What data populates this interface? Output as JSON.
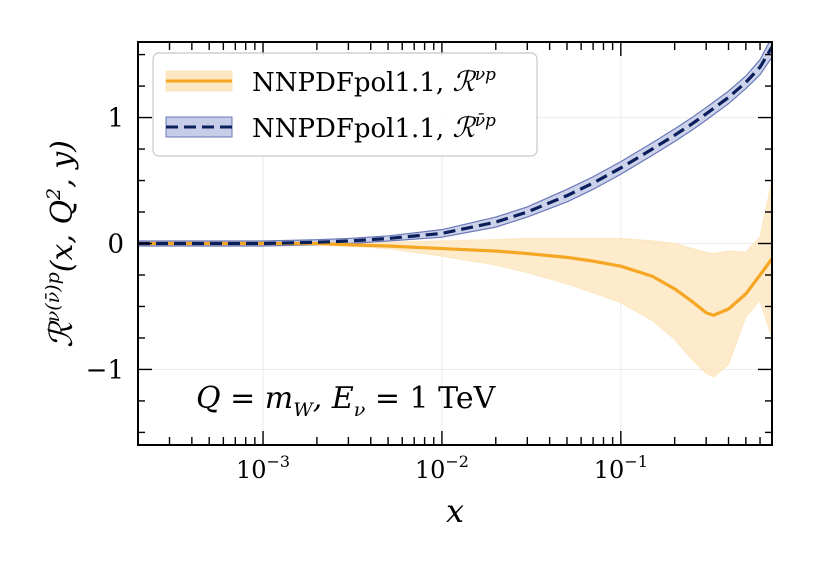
{
  "chart_data": {
    "type": "line",
    "xscale": "log",
    "xlim": [
      0.0002,
      0.7
    ],
    "ylim": [
      -1.6,
      1.6
    ],
    "grid": true,
    "xlabel": "x",
    "ylabel": "ℛ^{ν(ν̄)p}(x, Q², y)",
    "ylabel_parts": {
      "base": "ℛ",
      "sup": "ν(ν̄)p",
      "args": "(x, Q",
      "args_sup": "2",
      "args_end": ", y)"
    },
    "annotation": "Q = m_W, E_ν = 1 TeV",
    "annotation_parts": {
      "a": "Q = m",
      "a_sub": "W",
      "b": ", E",
      "b_sub": "ν",
      "c": " = 1 TeV"
    },
    "y_ticks": [
      {
        "value": 1,
        "label": "1"
      },
      {
        "value": 0,
        "label": "0"
      },
      {
        "value": -1,
        "label": "−1"
      }
    ],
    "x_ticks": [
      {
        "value": 0.001,
        "base": "10",
        "exp": "−3"
      },
      {
        "value": 0.01,
        "base": "10",
        "exp": "−2"
      },
      {
        "value": 0.1,
        "base": "10",
        "exp": "−1"
      }
    ],
    "legend_position": "top-left",
    "series": [
      {
        "name": "NNPDFpol1.1, ℛ^{νp}",
        "legend_text": "NNPDFpol1.1, ",
        "legend_sym": "ℛ",
        "legend_sup": "νp",
        "color": "#f5a623",
        "band_color": "#fde7c2",
        "style": "solid",
        "x": [
          0.0002,
          0.001,
          0.002,
          0.003,
          0.005,
          0.01,
          0.02,
          0.03,
          0.05,
          0.07,
          0.1,
          0.15,
          0.2,
          0.25,
          0.3,
          0.33,
          0.4,
          0.5,
          0.6,
          0.7
        ],
        "central": [
          0.0,
          0.0,
          0.0,
          -0.01,
          -0.02,
          -0.04,
          -0.06,
          -0.08,
          -0.11,
          -0.14,
          -0.18,
          -0.26,
          -0.36,
          -0.46,
          -0.55,
          -0.57,
          -0.52,
          -0.4,
          -0.25,
          -0.12
        ],
        "upper": [
          0.01,
          0.01,
          0.01,
          0.0,
          0.01,
          0.02,
          0.03,
          0.04,
          0.04,
          0.04,
          0.04,
          0.02,
          0.0,
          -0.04,
          -0.07,
          -0.08,
          -0.06,
          -0.07,
          0.05,
          0.5
        ],
        "lower": [
          -0.01,
          -0.01,
          -0.01,
          -0.02,
          -0.04,
          -0.1,
          -0.17,
          -0.23,
          -0.32,
          -0.39,
          -0.47,
          -0.61,
          -0.76,
          -0.92,
          -1.03,
          -1.06,
          -0.96,
          -0.58,
          -0.45,
          -0.75
        ]
      },
      {
        "name": "NNPDFpol1.1, ℛ^{ν̄p}",
        "legend_text": "NNPDFpol1.1, ",
        "legend_sym": "ℛ",
        "legend_sup": "ν̄p",
        "color": "#0b1f5c",
        "band_color": "#c7cde8",
        "band_edge": "#6a78b8",
        "style": "dashed",
        "x": [
          0.0002,
          0.001,
          0.002,
          0.003,
          0.005,
          0.01,
          0.02,
          0.03,
          0.05,
          0.07,
          0.1,
          0.15,
          0.2,
          0.25,
          0.3,
          0.4,
          0.5,
          0.6,
          0.7
        ],
        "central": [
          0.0,
          0.0,
          0.01,
          0.02,
          0.04,
          0.08,
          0.17,
          0.25,
          0.38,
          0.48,
          0.6,
          0.75,
          0.86,
          0.95,
          1.03,
          1.16,
          1.28,
          1.4,
          1.56
        ],
        "upper": [
          0.02,
          0.02,
          0.03,
          0.04,
          0.06,
          0.11,
          0.21,
          0.29,
          0.43,
          0.53,
          0.65,
          0.8,
          0.91,
          1.0,
          1.08,
          1.21,
          1.33,
          1.46,
          1.64
        ],
        "lower": [
          -0.02,
          -0.02,
          -0.01,
          0.0,
          0.02,
          0.05,
          0.13,
          0.21,
          0.33,
          0.43,
          0.55,
          0.7,
          0.81,
          0.9,
          0.98,
          1.11,
          1.23,
          1.34,
          1.48
        ]
      }
    ]
  }
}
